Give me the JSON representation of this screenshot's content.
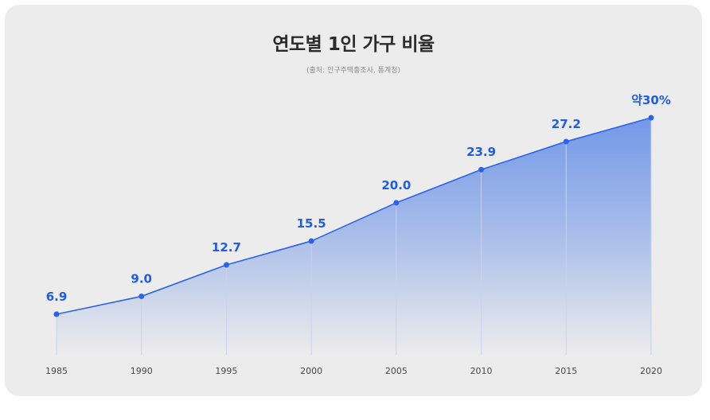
{
  "chart_data": {
    "type": "area",
    "title": "연도별 1인 가구 비율",
    "subtitle": "(출처: 인구주택총조사, 통계청)",
    "categories": [
      "1985",
      "1990",
      "1995",
      "2000",
      "2005",
      "2010",
      "2015",
      "2020"
    ],
    "values": [
      6.9,
      9.0,
      12.7,
      15.5,
      20.0,
      23.9,
      27.2,
      30.0
    ],
    "data_labels": [
      "6.9",
      "9.0",
      "12.7",
      "15.5",
      "20.0",
      "23.9",
      "27.2",
      "약30%"
    ],
    "xlabel": "",
    "ylabel": "",
    "grid": false,
    "legend": "none",
    "colors": {
      "line": "#2b63ee",
      "fill": "#4a7ce6",
      "label": "#1f5ce8",
      "drop_line": "#c9d2ee",
      "background": "#ececec"
    }
  }
}
